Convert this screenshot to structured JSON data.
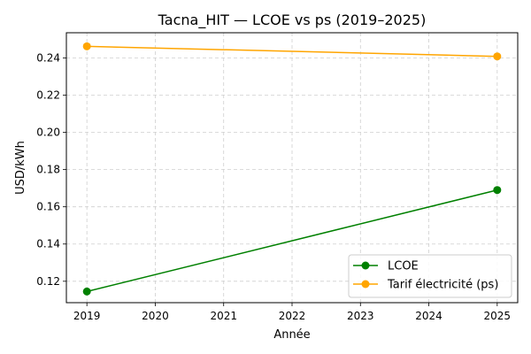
{
  "chart_data": {
    "type": "line",
    "title": "Tacna_HIT — LCOE vs ps (2019–2025)",
    "xlabel": "Année",
    "ylabel": "USD/kWh",
    "x": [
      2019,
      2025
    ],
    "xticks": [
      2019,
      2020,
      2021,
      2022,
      2023,
      2024,
      2025
    ],
    "xlim": [
      2018.7,
      2025.3
    ],
    "yticks": [
      0.12,
      0.14,
      0.16,
      0.18,
      0.2,
      0.22,
      0.24
    ],
    "ylim": [
      0.1085,
      0.2535
    ],
    "grid": true,
    "legend_position": "lower-right",
    "series": [
      {
        "name": "LCOE",
        "values": [
          0.1145,
          0.169
        ],
        "color": "#008000",
        "marker": "circle"
      },
      {
        "name": "Tarif électricité (ps)",
        "values": [
          0.2462,
          0.2408
        ],
        "color": "#FFA500",
        "marker": "circle"
      }
    ]
  }
}
